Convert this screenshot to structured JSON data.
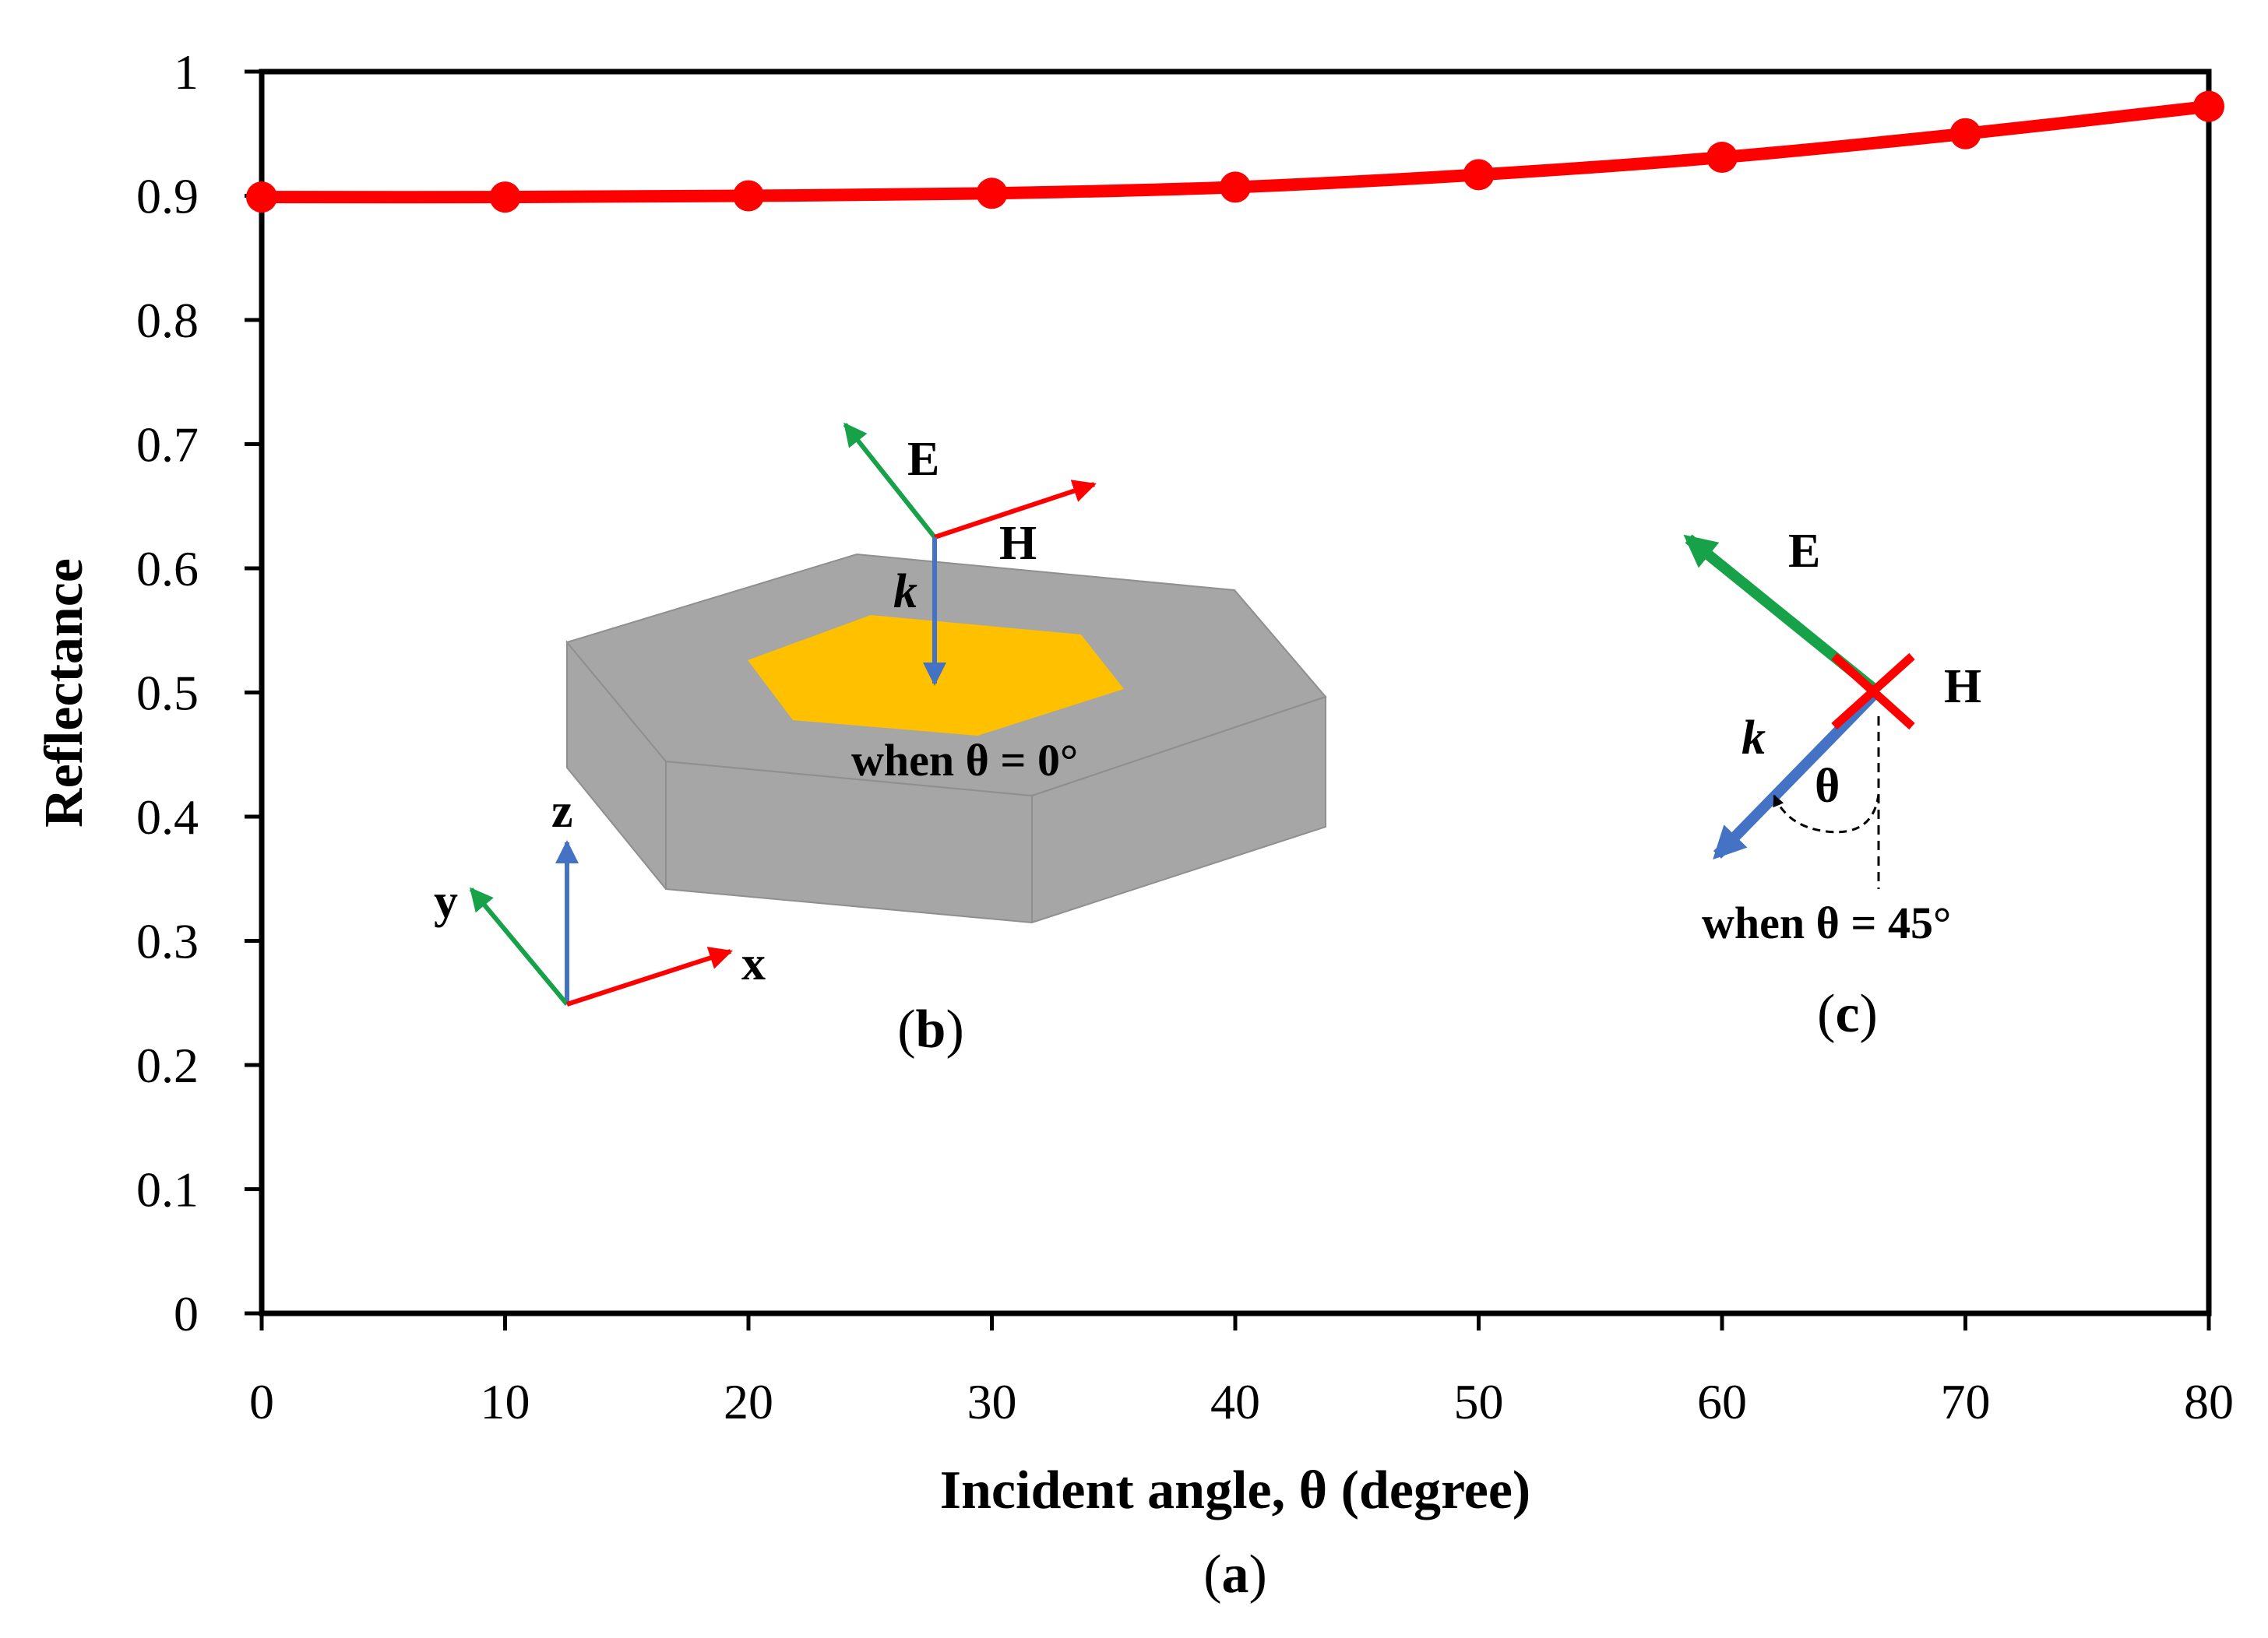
{
  "chart_data": {
    "type": "line",
    "title": "",
    "xlabel": "Incident angle, θ (degree)",
    "ylabel": "Reflectance",
    "xlim": [
      0,
      80
    ],
    "ylim": [
      0,
      1
    ],
    "x_ticks": [
      "0",
      "10",
      "20",
      "30",
      "40",
      "50",
      "60",
      "70",
      "80"
    ],
    "y_ticks": [
      "0",
      "0.1",
      "0.2",
      "0.3",
      "0.4",
      "0.5",
      "0.6",
      "0.7",
      "0.8",
      "0.9",
      "1"
    ],
    "series": [
      {
        "name": "Reflectance",
        "color": "#ff0000",
        "x": [
          0,
          10,
          20,
          30,
          40,
          50,
          60,
          70,
          80
        ],
        "values": [
          0.899,
          0.899,
          0.9,
          0.902,
          0.907,
          0.917,
          0.931,
          0.95,
          0.972
        ]
      }
    ],
    "caption": {
      "open": "(",
      "letter": "a",
      "close": ")"
    }
  },
  "inset_b": {
    "labels": {
      "E": "E",
      "H": "H",
      "k": "k",
      "x": "x",
      "y": "y",
      "z": "z"
    },
    "condition": "when θ = 0°",
    "caption": {
      "open": "(",
      "letter": "b",
      "close": ")"
    },
    "colors": {
      "substrate": "#a6a6a6",
      "patch": "#ffc000",
      "E": "#17a24a",
      "H": "#ff0000",
      "k": "#4472c4"
    }
  },
  "inset_c": {
    "labels": {
      "E": "E",
      "H": "H",
      "k": "k",
      "theta": "θ"
    },
    "condition": "when θ = 45°",
    "caption": {
      "open": "(",
      "letter": "c",
      "close": ")"
    }
  }
}
